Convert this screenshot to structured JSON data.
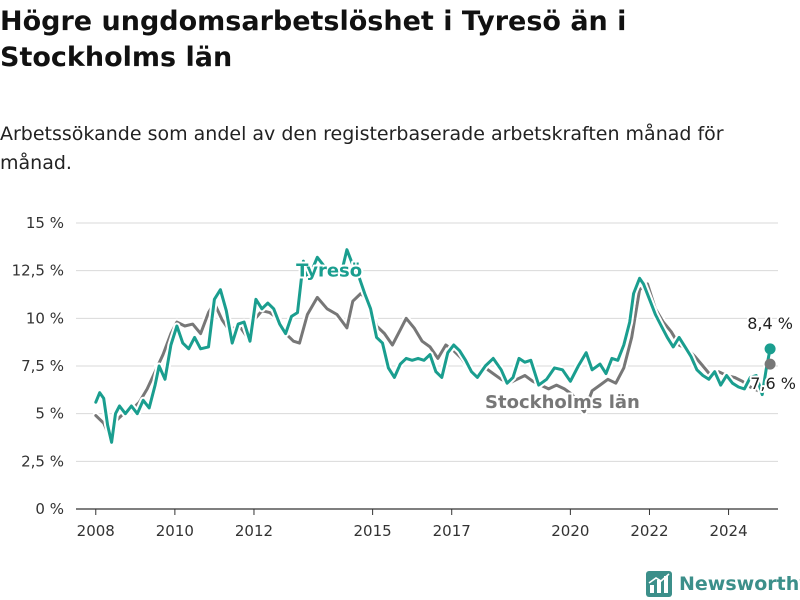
{
  "title": "Högre ungdomsarbetslöshet i Tyresö än i Stockholms län",
  "subtitle": "Arbetssökande som andel av den registerbaserade arbetskraften månad för månad.",
  "logo": {
    "text": "Newsworthy",
    "icon": "newsworthy-logo-icon"
  },
  "colors": {
    "tyreso": "#1a9e8f",
    "stockholm": "#777777",
    "grid": "#d9d9d9",
    "axis": "#333333"
  },
  "chart_data": {
    "type": "line",
    "ylim": [
      0,
      15
    ],
    "xlim": [
      2007.5,
      2025.25
    ],
    "y_ticks": [
      0,
      2.5,
      5,
      7.5,
      10,
      12.5,
      15
    ],
    "y_tick_labels": [
      "0 %",
      "2,5 %",
      "5 %",
      "7,5 %",
      "10 %",
      "12,5 %",
      "15 %"
    ],
    "x_ticks": [
      2008,
      2010,
      2012,
      2015,
      2017,
      2020,
      2022,
      2024
    ],
    "x_tick_labels": [
      "2008",
      "2010",
      "2012",
      "2015",
      "2017",
      "2020",
      "2022",
      "2024"
    ],
    "series": [
      {
        "name": "Stockholms län",
        "label": "Stockholms län",
        "end_label": "7,6 %",
        "end_value": 7.6,
        "color": "#777777",
        "points": [
          [
            2008.0,
            4.9
          ],
          [
            2008.2,
            4.5
          ],
          [
            2008.35,
            3.8
          ],
          [
            2008.5,
            4.6
          ],
          [
            2008.7,
            5.0
          ],
          [
            2008.9,
            5.2
          ],
          [
            2009.1,
            5.6
          ],
          [
            2009.3,
            6.3
          ],
          [
            2009.5,
            7.2
          ],
          [
            2009.7,
            8.1
          ],
          [
            2009.9,
            9.2
          ],
          [
            2010.05,
            9.8
          ],
          [
            2010.25,
            9.6
          ],
          [
            2010.45,
            9.7
          ],
          [
            2010.65,
            9.2
          ],
          [
            2010.85,
            10.3
          ],
          [
            2011.0,
            10.8
          ],
          [
            2011.2,
            9.9
          ],
          [
            2011.4,
            9.3
          ],
          [
            2011.6,
            9.7
          ],
          [
            2011.8,
            9.1
          ],
          [
            2012.0,
            9.9
          ],
          [
            2012.2,
            10.4
          ],
          [
            2012.4,
            10.3
          ],
          [
            2012.6,
            10.0
          ],
          [
            2012.8,
            9.2
          ],
          [
            2013.0,
            8.8
          ],
          [
            2013.15,
            8.7
          ],
          [
            2013.35,
            10.2
          ],
          [
            2013.6,
            11.1
          ],
          [
            2013.85,
            10.5
          ],
          [
            2014.1,
            10.2
          ],
          [
            2014.35,
            9.5
          ],
          [
            2014.5,
            10.9
          ],
          [
            2014.7,
            11.3
          ],
          [
            2014.9,
            10.9
          ],
          [
            2015.1,
            9.6
          ],
          [
            2015.3,
            9.2
          ],
          [
            2015.5,
            8.6
          ],
          [
            2015.7,
            9.4
          ],
          [
            2015.85,
            10.0
          ],
          [
            2016.05,
            9.5
          ],
          [
            2016.25,
            8.8
          ],
          [
            2016.45,
            8.5
          ],
          [
            2016.65,
            7.9
          ],
          [
            2016.85,
            8.6
          ],
          [
            2017.05,
            8.3
          ],
          [
            2017.25,
            7.9
          ],
          [
            2017.45,
            7.3
          ],
          [
            2017.65,
            7.0
          ],
          [
            2017.85,
            7.4
          ],
          [
            2018.05,
            7.1
          ],
          [
            2018.25,
            6.8
          ],
          [
            2018.45,
            6.6
          ],
          [
            2018.65,
            6.8
          ],
          [
            2018.85,
            7.0
          ],
          [
            2019.05,
            6.7
          ],
          [
            2019.25,
            6.5
          ],
          [
            2019.45,
            6.3
          ],
          [
            2019.65,
            6.5
          ],
          [
            2019.85,
            6.3
          ],
          [
            2020.05,
            6.0
          ],
          [
            2020.2,
            5.5
          ],
          [
            2020.35,
            5.1
          ],
          [
            2020.55,
            6.2
          ],
          [
            2020.75,
            6.5
          ],
          [
            2020.95,
            6.8
          ],
          [
            2021.15,
            6.6
          ],
          [
            2021.35,
            7.4
          ],
          [
            2021.55,
            9.0
          ],
          [
            2021.75,
            11.5
          ],
          [
            2021.95,
            11.8
          ],
          [
            2022.15,
            10.5
          ],
          [
            2022.35,
            9.8
          ],
          [
            2022.55,
            9.3
          ],
          [
            2022.75,
            8.6
          ],
          [
            2022.95,
            8.4
          ],
          [
            2023.15,
            8.0
          ],
          [
            2023.35,
            7.5
          ],
          [
            2023.55,
            7.0
          ],
          [
            2023.75,
            7.2
          ],
          [
            2023.95,
            7.0
          ],
          [
            2024.15,
            6.9
          ],
          [
            2024.35,
            6.7
          ],
          [
            2024.55,
            6.4
          ],
          [
            2024.75,
            6.2
          ],
          [
            2024.9,
            7.0
          ],
          [
            2025.05,
            7.6
          ]
        ]
      },
      {
        "name": "Tyresö",
        "label": "Tyresö",
        "end_label": "8,4 %",
        "end_value": 8.4,
        "color": "#1a9e8f",
        "points": [
          [
            2008.0,
            5.6
          ],
          [
            2008.1,
            6.1
          ],
          [
            2008.2,
            5.8
          ],
          [
            2008.3,
            4.4
          ],
          [
            2008.4,
            3.5
          ],
          [
            2008.5,
            5.0
          ],
          [
            2008.6,
            5.4
          ],
          [
            2008.75,
            5.0
          ],
          [
            2008.9,
            5.4
          ],
          [
            2009.05,
            5.0
          ],
          [
            2009.2,
            5.7
          ],
          [
            2009.35,
            5.3
          ],
          [
            2009.5,
            6.5
          ],
          [
            2009.6,
            7.5
          ],
          [
            2009.75,
            6.8
          ],
          [
            2009.9,
            8.6
          ],
          [
            2010.05,
            9.6
          ],
          [
            2010.2,
            8.7
          ],
          [
            2010.35,
            8.4
          ],
          [
            2010.5,
            9.0
          ],
          [
            2010.65,
            8.4
          ],
          [
            2010.85,
            8.5
          ],
          [
            2011.0,
            11.0
          ],
          [
            2011.15,
            11.5
          ],
          [
            2011.3,
            10.4
          ],
          [
            2011.45,
            8.7
          ],
          [
            2011.6,
            9.7
          ],
          [
            2011.75,
            9.8
          ],
          [
            2011.9,
            8.8
          ],
          [
            2012.05,
            11.0
          ],
          [
            2012.2,
            10.5
          ],
          [
            2012.35,
            10.8
          ],
          [
            2012.5,
            10.5
          ],
          [
            2012.65,
            9.7
          ],
          [
            2012.8,
            9.2
          ],
          [
            2012.95,
            10.1
          ],
          [
            2013.1,
            10.3
          ],
          [
            2013.25,
            13.0
          ],
          [
            2013.35,
            12.2
          ],
          [
            2013.5,
            12.7
          ],
          [
            2013.6,
            13.2
          ],
          [
            2013.75,
            12.8
          ],
          [
            2013.9,
            12.4
          ],
          [
            2014.05,
            12.5
          ],
          [
            2014.2,
            12.3
          ],
          [
            2014.35,
            13.6
          ],
          [
            2014.5,
            12.8
          ],
          [
            2014.65,
            12.2
          ],
          [
            2014.8,
            11.3
          ],
          [
            2014.95,
            10.5
          ],
          [
            2015.1,
            9.0
          ],
          [
            2015.25,
            8.7
          ],
          [
            2015.4,
            7.4
          ],
          [
            2015.55,
            6.9
          ],
          [
            2015.7,
            7.6
          ],
          [
            2015.85,
            7.9
          ],
          [
            2016.0,
            7.8
          ],
          [
            2016.15,
            7.9
          ],
          [
            2016.3,
            7.8
          ],
          [
            2016.45,
            8.1
          ],
          [
            2016.6,
            7.2
          ],
          [
            2016.75,
            6.9
          ],
          [
            2016.9,
            8.2
          ],
          [
            2017.05,
            8.6
          ],
          [
            2017.2,
            8.3
          ],
          [
            2017.35,
            7.8
          ],
          [
            2017.5,
            7.2
          ],
          [
            2017.65,
            6.9
          ],
          [
            2017.85,
            7.5
          ],
          [
            2018.05,
            7.9
          ],
          [
            2018.25,
            7.3
          ],
          [
            2018.4,
            6.6
          ],
          [
            2018.55,
            6.9
          ],
          [
            2018.7,
            7.9
          ],
          [
            2018.85,
            7.7
          ],
          [
            2019.0,
            7.8
          ],
          [
            2019.2,
            6.5
          ],
          [
            2019.4,
            6.8
          ],
          [
            2019.6,
            7.4
          ],
          [
            2019.8,
            7.3
          ],
          [
            2020.0,
            6.7
          ],
          [
            2020.2,
            7.5
          ],
          [
            2020.4,
            8.2
          ],
          [
            2020.55,
            7.3
          ],
          [
            2020.75,
            7.6
          ],
          [
            2020.9,
            7.1
          ],
          [
            2021.05,
            7.9
          ],
          [
            2021.2,
            7.8
          ],
          [
            2021.35,
            8.6
          ],
          [
            2021.5,
            9.8
          ],
          [
            2021.6,
            11.3
          ],
          [
            2021.75,
            12.1
          ],
          [
            2021.85,
            11.8
          ],
          [
            2022.0,
            11.0
          ],
          [
            2022.15,
            10.2
          ],
          [
            2022.3,
            9.6
          ],
          [
            2022.45,
            9.0
          ],
          [
            2022.6,
            8.5
          ],
          [
            2022.75,
            9.0
          ],
          [
            2022.9,
            8.5
          ],
          [
            2023.05,
            8.0
          ],
          [
            2023.2,
            7.3
          ],
          [
            2023.35,
            7.0
          ],
          [
            2023.5,
            6.8
          ],
          [
            2023.65,
            7.2
          ],
          [
            2023.8,
            6.5
          ],
          [
            2023.95,
            7.0
          ],
          [
            2024.1,
            6.6
          ],
          [
            2024.25,
            6.4
          ],
          [
            2024.4,
            6.3
          ],
          [
            2024.55,
            6.9
          ],
          [
            2024.7,
            7.0
          ],
          [
            2024.85,
            6.0
          ],
          [
            2024.95,
            7.3
          ],
          [
            2025.05,
            8.4
          ]
        ]
      }
    ]
  }
}
